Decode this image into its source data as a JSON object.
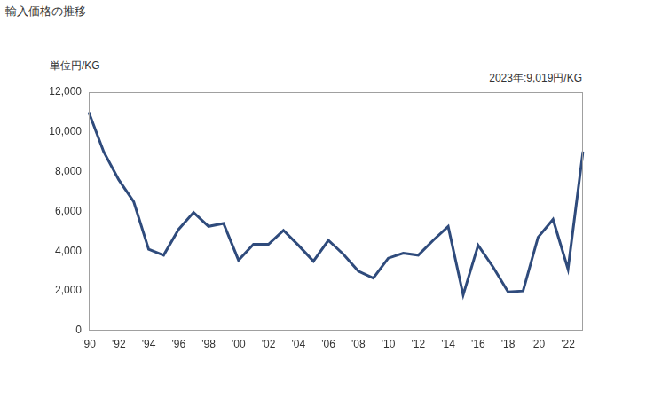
{
  "chart_data": {
    "type": "line",
    "title": "輸入価格の推移",
    "y_label": "単位円/KG",
    "annotation": "2023年:9,019円/KG",
    "categories": [
      "'90",
      null,
      "'92",
      null,
      "'94",
      null,
      "'96",
      null,
      "'98",
      null,
      "'00",
      null,
      "'02",
      null,
      "'04",
      null,
      "'06",
      null,
      "'08",
      null,
      "'10",
      null,
      "'12",
      null,
      "'14",
      null,
      "'16",
      null,
      "'18",
      null,
      "'20",
      null,
      "'22",
      null
    ],
    "values": [
      11000,
      9000,
      7600,
      6500,
      4100,
      3800,
      5100,
      5950,
      5250,
      5400,
      3550,
      4350,
      4350,
      5050,
      4300,
      3500,
      4550,
      3850,
      3000,
      2650,
      3650,
      3900,
      3800,
      4550,
      5250,
      1800,
      4300,
      3200,
      1950,
      2000,
      4700,
      5600,
      3100,
      9019
    ],
    "color": "#2f4b7c",
    "ylim": [
      0,
      12000
    ],
    "yticks": [
      0,
      {
        "value": 2000,
        "label": "2,000"
      },
      {
        "value": 4000,
        "label": "4,000"
      },
      {
        "value": 6000,
        "label": "6,000"
      },
      {
        "value": 8000,
        "label": "8,000"
      },
      {
        "value": 10000,
        "label": "10,000"
      },
      {
        "value": 12000,
        "label": "12,000"
      }
    ],
    "grid": false
  }
}
